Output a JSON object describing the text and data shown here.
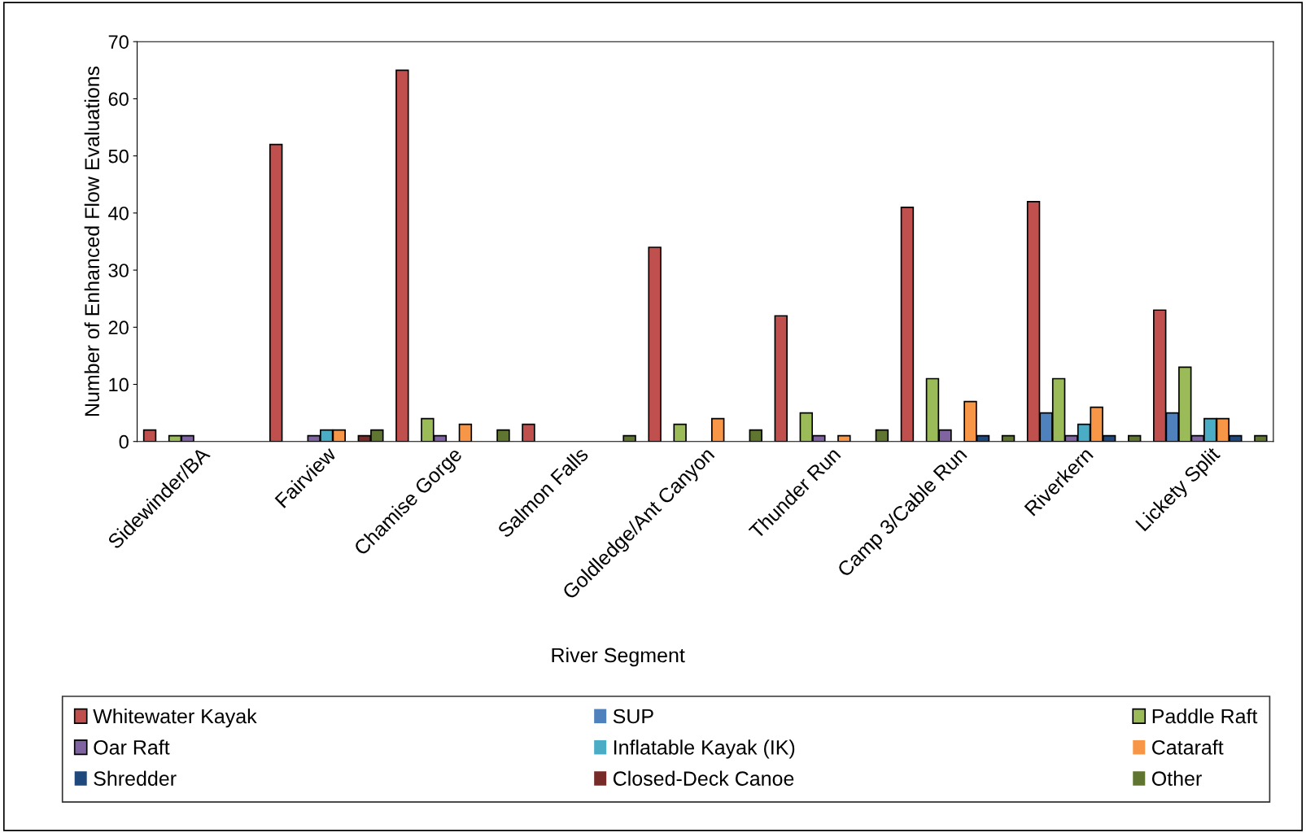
{
  "chart_data": {
    "type": "bar",
    "xlabel": "River Segment",
    "ylabel": "Number of Enhanced Flow Evaluations",
    "categories": [
      "Sidewinder/BA",
      "Fairview",
      "Chamise Gorge",
      "Salmon Falls",
      "Goldledge/Ant Canyon",
      "Thunder Run",
      "Camp 3/Cable Run",
      "Riverkern",
      "Lickety Split"
    ],
    "ylim": [
      0,
      70
    ],
    "yticks": [
      0,
      10,
      20,
      30,
      40,
      50,
      60,
      70
    ],
    "grid": false,
    "legend": "bottom",
    "series": [
      {
        "name": "Whitewater Kayak",
        "color": "#c0504d",
        "values": [
          2,
          52,
          65,
          3,
          34,
          22,
          41,
          42,
          23
        ]
      },
      {
        "name": "SUP",
        "color": "#4f81bd",
        "values": [
          0,
          0,
          0,
          0,
          0,
          0,
          0,
          5,
          5
        ]
      },
      {
        "name": "Paddle Raft",
        "color": "#9bbb59",
        "values": [
          1,
          0,
          4,
          0,
          3,
          5,
          11,
          11,
          13
        ]
      },
      {
        "name": "Oar Raft",
        "color": "#8064a2",
        "values": [
          1,
          1,
          1,
          0,
          0,
          1,
          2,
          1,
          1
        ]
      },
      {
        "name": "Inflatable Kayak (IK)",
        "color": "#4bacc6",
        "values": [
          0,
          2,
          0,
          0,
          0,
          0,
          0,
          3,
          4
        ]
      },
      {
        "name": "Cataraft",
        "color": "#f79646",
        "values": [
          0,
          2,
          3,
          0,
          4,
          1,
          7,
          6,
          4
        ]
      },
      {
        "name": "Shredder",
        "color": "#1f497d",
        "values": [
          0,
          0,
          0,
          0,
          0,
          0,
          1,
          1,
          1
        ]
      },
      {
        "name": "Closed-Deck Canoe",
        "color": "#772c2a",
        "values": [
          0,
          1,
          0,
          0,
          0,
          0,
          0,
          0,
          0
        ]
      },
      {
        "name": "Other",
        "color": "#5f7530",
        "values": [
          0,
          2,
          2,
          1,
          2,
          2,
          1,
          1,
          1
        ]
      }
    ]
  }
}
